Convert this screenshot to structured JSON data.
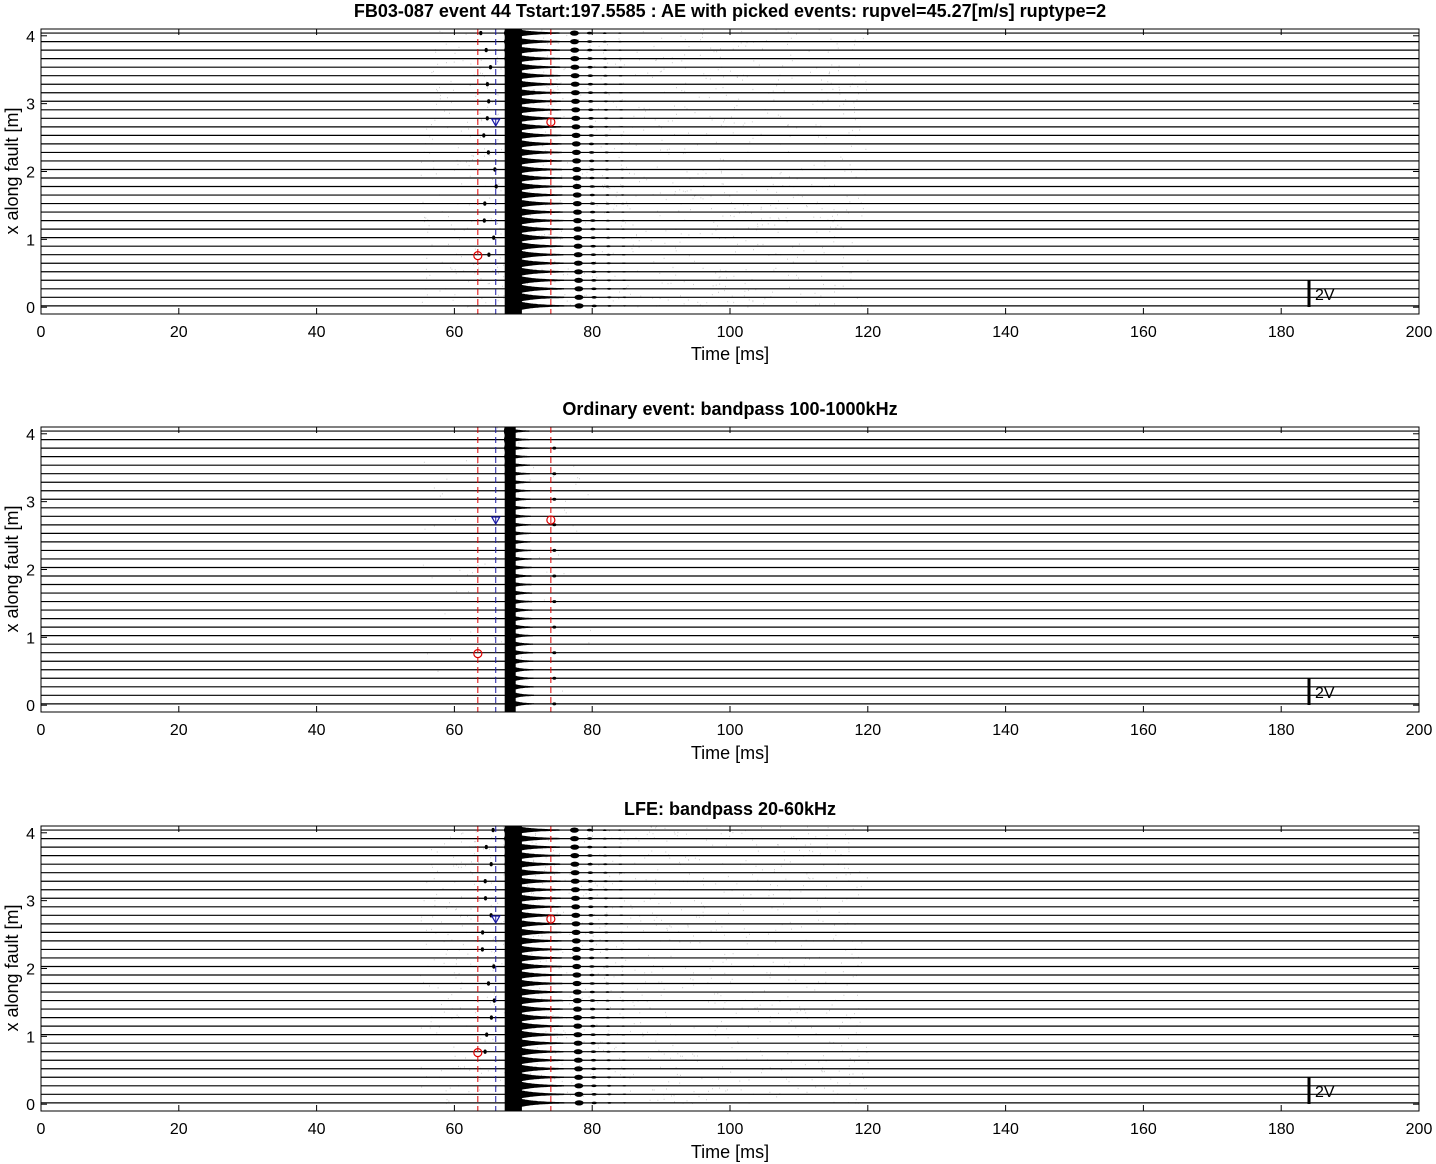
{
  "chart_data": [
    {
      "type": "line",
      "title": "FB03-087 event 44 Tstart:197.5585 : AE with picked events: rupvel=45.27[m/s] ruptype=2",
      "xlabel": "Time [ms]",
      "ylabel": "x along fault [m]",
      "xlim": [
        0,
        200
      ],
      "ylim": [
        -0.1,
        4.1
      ],
      "xticks": [
        "0",
        "20",
        "40",
        "60",
        "80",
        "100",
        "120",
        "140",
        "160",
        "180",
        "200"
      ],
      "yticks": [
        "0",
        "1",
        "2",
        "3",
        "4"
      ],
      "scale_bar_label": "2V",
      "grid": false,
      "band": "AE",
      "picked_events": [
        {
          "marker": "circle",
          "color": "#dd0000",
          "t": 63.4,
          "x": 0.76
        },
        {
          "marker": "triangle-down",
          "color": "#1a1aa6",
          "t": 66.0,
          "x": 2.73
        },
        {
          "marker": "circle",
          "color": "#dd0000",
          "t": 74.0,
          "x": 2.73
        }
      ],
      "vertical_dashed_lines": [
        {
          "t": 63.4,
          "color": "#dd0000"
        },
        {
          "t": 66.0,
          "color": "#1a1aa6"
        },
        {
          "t": 74.0,
          "color": "#dd0000"
        }
      ]
    },
    {
      "type": "line",
      "title": "Ordinary event: bandpass 100-1000kHz",
      "xlabel": "Time [ms]",
      "ylabel": "x along fault [m]",
      "xlim": [
        0,
        200
      ],
      "ylim": [
        -0.1,
        4.1
      ],
      "xticks": [
        "0",
        "20",
        "40",
        "60",
        "80",
        "100",
        "120",
        "140",
        "160",
        "180",
        "200"
      ],
      "yticks": [
        "0",
        "1",
        "2",
        "3",
        "4"
      ],
      "scale_bar_label": "2V",
      "grid": false,
      "band": "HF",
      "picked_events": [
        {
          "marker": "circle",
          "color": "#dd0000",
          "t": 63.4,
          "x": 0.76
        },
        {
          "marker": "triangle-down",
          "color": "#1a1aa6",
          "t": 66.0,
          "x": 2.73
        },
        {
          "marker": "circle",
          "color": "#dd0000",
          "t": 74.0,
          "x": 2.73
        }
      ],
      "vertical_dashed_lines": [
        {
          "t": 63.4,
          "color": "#dd0000"
        },
        {
          "t": 66.0,
          "color": "#1a1aa6"
        },
        {
          "t": 74.0,
          "color": "#dd0000"
        }
      ]
    },
    {
      "type": "line",
      "title": "LFE: bandpass 20-60kHz",
      "xlabel": "Time [ms]",
      "ylabel": "x along fault [m]",
      "xlim": [
        0,
        200
      ],
      "ylim": [
        -0.1,
        4.1
      ],
      "xticks": [
        "0",
        "20",
        "40",
        "60",
        "80",
        "100",
        "120",
        "140",
        "160",
        "180",
        "200"
      ],
      "yticks": [
        "0",
        "1",
        "2",
        "3",
        "4"
      ],
      "scale_bar_label": "2V",
      "grid": false,
      "band": "LF",
      "picked_events": [
        {
          "marker": "circle",
          "color": "#dd0000",
          "t": 63.4,
          "x": 0.76
        },
        {
          "marker": "triangle-down",
          "color": "#1a1aa6",
          "t": 66.0,
          "x": 2.73
        },
        {
          "marker": "circle",
          "color": "#dd0000",
          "t": 74.0,
          "x": 2.73
        }
      ],
      "vertical_dashed_lines": [
        {
          "t": 63.4,
          "color": "#dd0000"
        },
        {
          "t": 66.0,
          "color": "#1a1aa6"
        },
        {
          "t": 74.0,
          "color": "#dd0000"
        }
      ]
    }
  ],
  "trace_channels": 33,
  "trace_color": "#000000"
}
